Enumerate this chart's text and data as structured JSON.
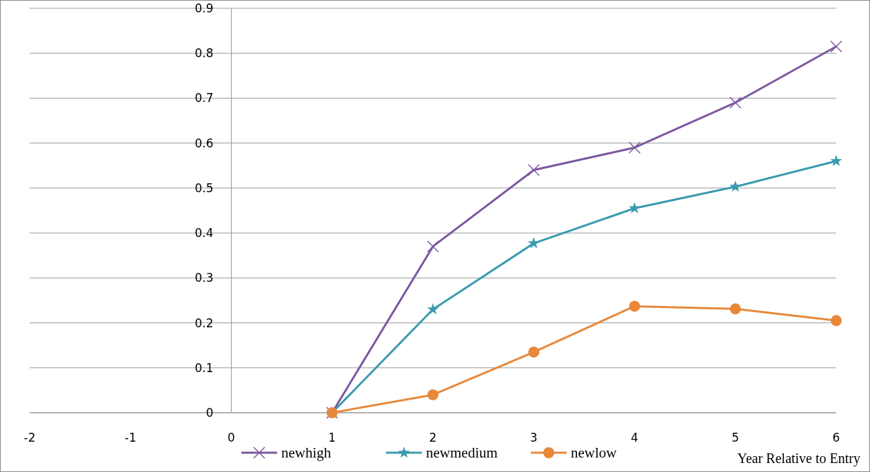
{
  "chart_data": {
    "type": "line",
    "xlabel": "Year Relative to Entry",
    "x": [
      1,
      2,
      3,
      4,
      5,
      6
    ],
    "series": [
      {
        "name": "newhigh",
        "color": "#7b57a0",
        "marker": "cross",
        "values": [
          0,
          0.37,
          0.54,
          0.59,
          0.69,
          0.815
        ]
      },
      {
        "name": "newmedium",
        "color": "#3a9bb0",
        "marker": "star",
        "values": [
          0,
          0.23,
          0.377,
          0.455,
          0.503,
          0.56
        ]
      },
      {
        "name": "newlow",
        "color": "#e8883a",
        "marker": "circle",
        "values": [
          0,
          0.04,
          0.135,
          0.237,
          0.231,
          0.205
        ]
      }
    ],
    "xlim": [
      -2,
      6
    ],
    "xticks": [
      -2,
      -1,
      0,
      1,
      2,
      3,
      4,
      5,
      6
    ],
    "ylim": [
      0,
      0.9
    ],
    "yticks": [
      0,
      0.1,
      0.2,
      0.3,
      0.4,
      0.5,
      0.6,
      0.7,
      0.8,
      0.9
    ],
    "grid": "y",
    "legend": "bottom"
  }
}
